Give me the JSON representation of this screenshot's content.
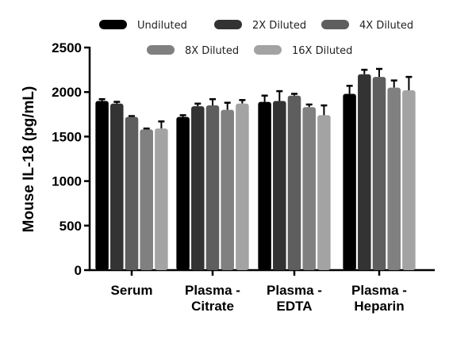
{
  "chart_data": {
    "type": "bar",
    "title": "",
    "xlabel": "",
    "ylabel": "Mouse IL-18 (pg/mL)",
    "ylim": [
      0,
      2500
    ],
    "yticks": [
      0,
      500,
      1000,
      1500,
      2000,
      2500
    ],
    "grid": false,
    "legend_placement": "top",
    "categories": [
      [
        "Serum"
      ],
      [
        "Plasma -",
        "Citrate"
      ],
      [
        "Plasma -",
        "EDTA"
      ],
      [
        "Plasma -",
        "Heparin"
      ]
    ],
    "series": [
      {
        "name": "Undiluted",
        "color": "#000000",
        "values": [
          1900,
          1720,
          1890,
          1980
        ],
        "errors": [
          20,
          20,
          70,
          90
        ]
      },
      {
        "name": "2X Diluted",
        "color": "#333333",
        "values": [
          1870,
          1840,
          1900,
          2200
        ],
        "errors": [
          20,
          30,
          110,
          50
        ]
      },
      {
        "name": "4X Diluted",
        "color": "#5e5e5e",
        "values": [
          1720,
          1850,
          1960,
          2170
        ],
        "errors": [
          10,
          70,
          20,
          90
        ]
      },
      {
        "name": "8X Diluted",
        "color": "#808080",
        "values": [
          1580,
          1800,
          1830,
          2050
        ],
        "errors": [
          10,
          80,
          30,
          80
        ]
      },
      {
        "name": "16X Diluted",
        "color": "#a3a3a3",
        "values": [
          1590,
          1870,
          1740,
          2020
        ],
        "errors": [
          80,
          40,
          110,
          150
        ]
      }
    ]
  }
}
